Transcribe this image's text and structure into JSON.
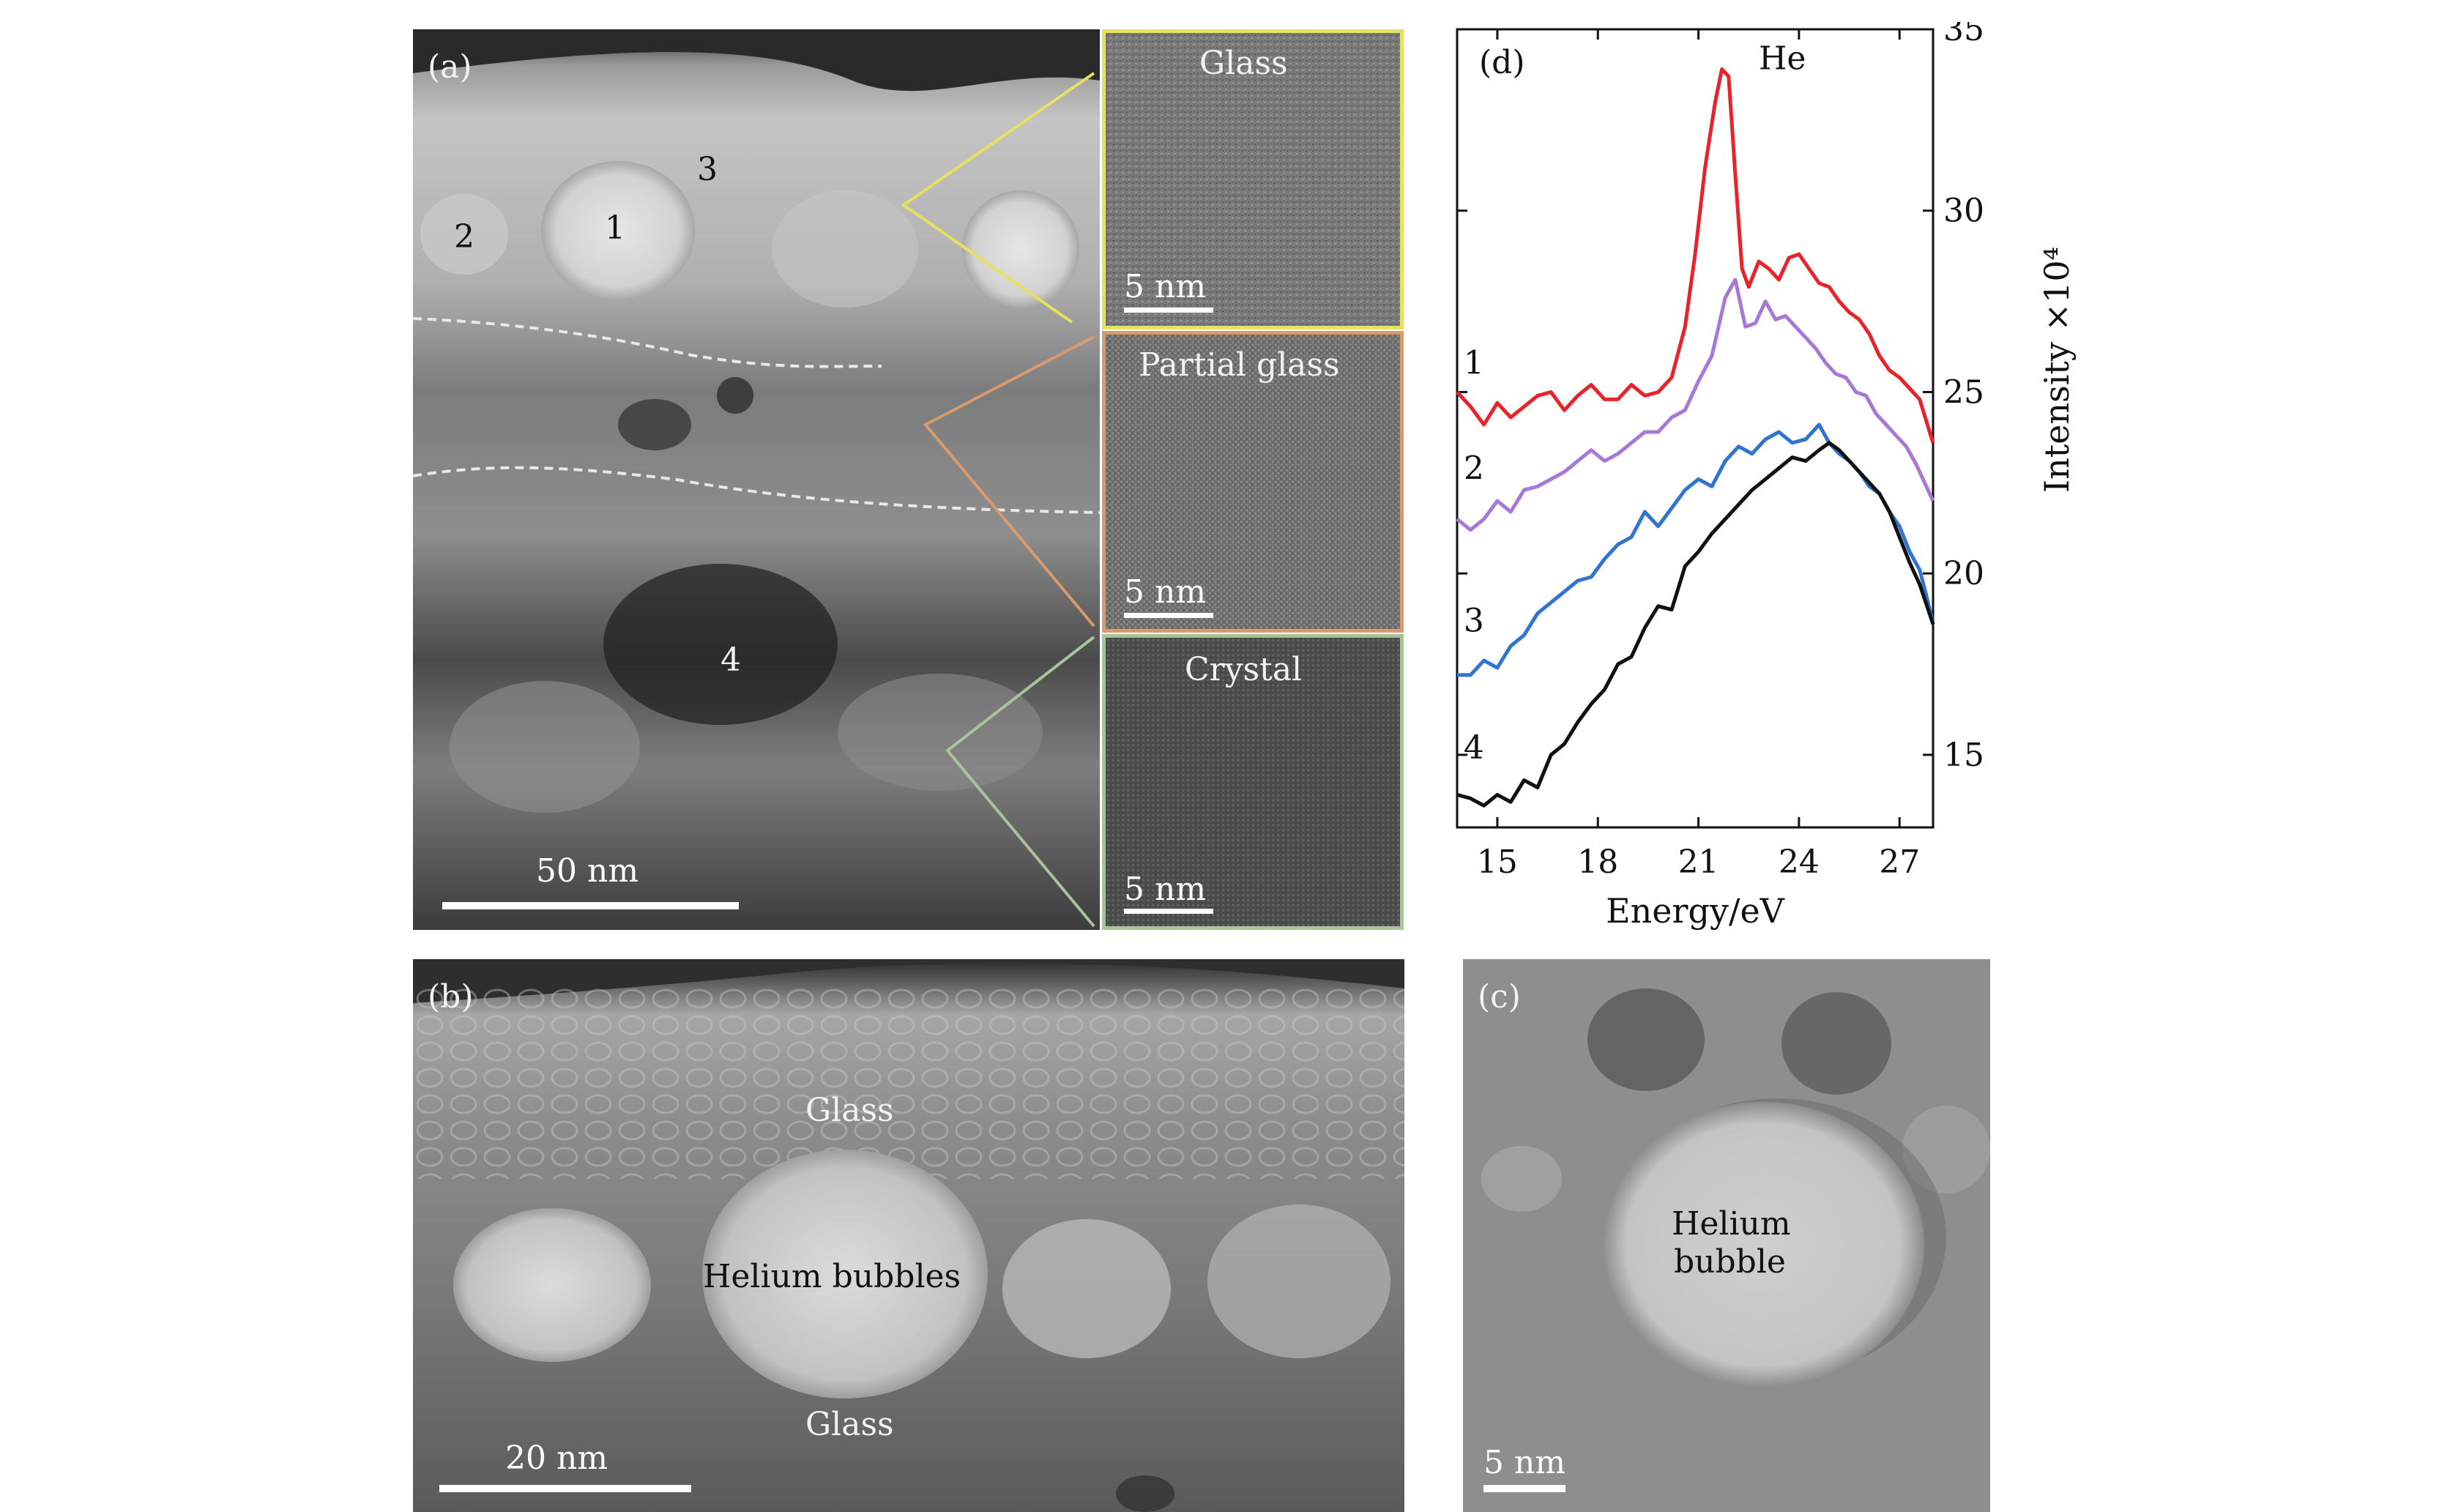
{
  "panel_a": {
    "label": "(a)",
    "regions": [
      "1",
      "2",
      "3",
      "4"
    ],
    "scale": "50 nm",
    "insets": [
      {
        "title": "Glass",
        "scale": "5 nm",
        "border": "#e8e060"
      },
      {
        "title": "Partial glass",
        "scale": "5 nm",
        "border": "#d99a6e"
      },
      {
        "title": "Crystal",
        "scale": "5 nm",
        "border": "#a8c49a"
      }
    ]
  },
  "panel_b": {
    "label": "(b)",
    "glass_top": "Glass",
    "bubbles": "Helium bubbles",
    "glass_bottom": "Glass",
    "scale": "20 nm"
  },
  "panel_c": {
    "label": "(c)",
    "bubble_line1": "Helium",
    "bubble_line2": "bubble",
    "scale": "5 nm"
  },
  "panel_d": {
    "label": "(d)"
  },
  "chart_data": {
    "type": "line",
    "title": "",
    "xlabel": "Energy/eV",
    "ylabel": "Intensity ×10⁴",
    "xlim": [
      13.8,
      28.0
    ],
    "ylim": [
      13.0,
      35.0
    ],
    "xticks": [
      15,
      18,
      21,
      24,
      27
    ],
    "yticks": [
      15,
      20,
      25,
      30,
      35
    ],
    "peak_label": "He",
    "peak_label_pos": {
      "x": 22.8,
      "y": 33.9
    },
    "series": [
      {
        "name": "1",
        "color": "#e8242a",
        "label_pos": {
          "x": 14.3,
          "y": 25.5
        },
        "x": [
          13.8,
          14.2,
          14.6,
          15.0,
          15.4,
          15.8,
          16.2,
          16.6,
          17.0,
          17.4,
          17.8,
          18.2,
          18.6,
          19.0,
          19.4,
          19.8,
          20.2,
          20.6,
          20.9,
          21.2,
          21.5,
          21.7,
          21.9,
          22.1,
          22.3,
          22.5,
          22.8,
          23.1,
          23.4,
          23.7,
          24.0,
          24.3,
          24.6,
          24.9,
          25.2,
          25.5,
          25.8,
          26.1,
          26.4,
          26.7,
          27.0,
          27.3,
          27.6,
          28.0
        ],
        "y": [
          25.0,
          24.6,
          24.1,
          24.7,
          24.3,
          24.6,
          24.9,
          25.0,
          24.5,
          24.9,
          25.2,
          24.8,
          24.8,
          25.2,
          24.9,
          25.0,
          25.4,
          26.8,
          28.8,
          31.2,
          33.0,
          33.9,
          33.7,
          31.0,
          28.4,
          27.9,
          28.6,
          28.4,
          28.1,
          28.7,
          28.8,
          28.4,
          28.0,
          27.9,
          27.5,
          27.2,
          27.0,
          26.6,
          26.0,
          25.6,
          25.4,
          25.1,
          24.8,
          23.6
        ]
      },
      {
        "name": "2",
        "color": "#a878d8",
        "label_pos": {
          "x": 14.3,
          "y": 22.6
        },
        "x": [
          13.8,
          14.2,
          14.6,
          15.0,
          15.4,
          15.8,
          16.2,
          16.6,
          17.0,
          17.4,
          17.8,
          18.2,
          18.6,
          19.0,
          19.4,
          19.8,
          20.2,
          20.6,
          21.0,
          21.4,
          21.8,
          22.1,
          22.4,
          22.7,
          23.0,
          23.3,
          23.6,
          23.9,
          24.2,
          24.5,
          24.8,
          25.1,
          25.4,
          25.7,
          26.0,
          26.3,
          26.6,
          26.9,
          27.2,
          27.5,
          27.8,
          28.0
        ],
        "y": [
          21.5,
          21.2,
          21.5,
          22.0,
          21.7,
          22.3,
          22.4,
          22.6,
          22.8,
          23.1,
          23.4,
          23.1,
          23.3,
          23.6,
          23.9,
          23.9,
          24.3,
          24.5,
          25.3,
          26.0,
          27.6,
          28.1,
          26.8,
          26.9,
          27.5,
          27.0,
          27.1,
          26.8,
          26.5,
          26.2,
          25.8,
          25.5,
          25.4,
          25.0,
          24.9,
          24.4,
          24.1,
          23.8,
          23.5,
          23.0,
          22.4,
          22.0
        ]
      },
      {
        "name": "3",
        "color": "#2e74d0",
        "label_pos": {
          "x": 14.3,
          "y": 18.4
        },
        "x": [
          13.8,
          14.2,
          14.6,
          15.0,
          15.4,
          15.8,
          16.2,
          16.6,
          17.0,
          17.4,
          17.8,
          18.2,
          18.6,
          19.0,
          19.4,
          19.8,
          20.2,
          20.6,
          21.0,
          21.4,
          21.8,
          22.2,
          22.6,
          23.0,
          23.4,
          23.8,
          24.2,
          24.6,
          24.9,
          25.2,
          25.5,
          25.8,
          26.1,
          26.4,
          26.7,
          27.0,
          27.3,
          27.6,
          27.8,
          28.0
        ],
        "y": [
          17.2,
          17.2,
          17.6,
          17.4,
          18.0,
          18.3,
          18.9,
          19.2,
          19.5,
          19.8,
          19.9,
          20.4,
          20.8,
          21.0,
          21.7,
          21.3,
          21.8,
          22.3,
          22.6,
          22.4,
          23.1,
          23.5,
          23.3,
          23.7,
          23.9,
          23.6,
          23.7,
          24.1,
          23.6,
          23.3,
          23.1,
          22.8,
          22.4,
          22.2,
          21.7,
          21.3,
          20.6,
          20.1,
          19.4,
          18.6
        ]
      },
      {
        "name": "4",
        "color": "#111111",
        "label_pos": {
          "x": 14.3,
          "y": 14.9
        },
        "x": [
          13.8,
          14.2,
          14.6,
          15.0,
          15.4,
          15.8,
          16.2,
          16.6,
          17.0,
          17.4,
          17.8,
          18.2,
          18.6,
          19.0,
          19.4,
          19.8,
          20.2,
          20.6,
          21.0,
          21.4,
          21.8,
          22.2,
          22.6,
          23.0,
          23.4,
          23.8,
          24.2,
          24.6,
          24.9,
          25.2,
          25.5,
          25.8,
          26.1,
          26.4,
          26.7,
          27.0,
          27.3,
          27.6,
          28.0
        ],
        "y": [
          13.9,
          13.8,
          13.6,
          13.9,
          13.7,
          14.3,
          14.1,
          15.0,
          15.3,
          15.9,
          16.4,
          16.8,
          17.5,
          17.7,
          18.5,
          19.1,
          19.0,
          20.2,
          20.6,
          21.1,
          21.5,
          21.9,
          22.3,
          22.6,
          22.9,
          23.2,
          23.1,
          23.4,
          23.6,
          23.4,
          23.1,
          22.8,
          22.5,
          22.2,
          21.7,
          21.0,
          20.3,
          19.7,
          18.6
        ]
      }
    ]
  }
}
